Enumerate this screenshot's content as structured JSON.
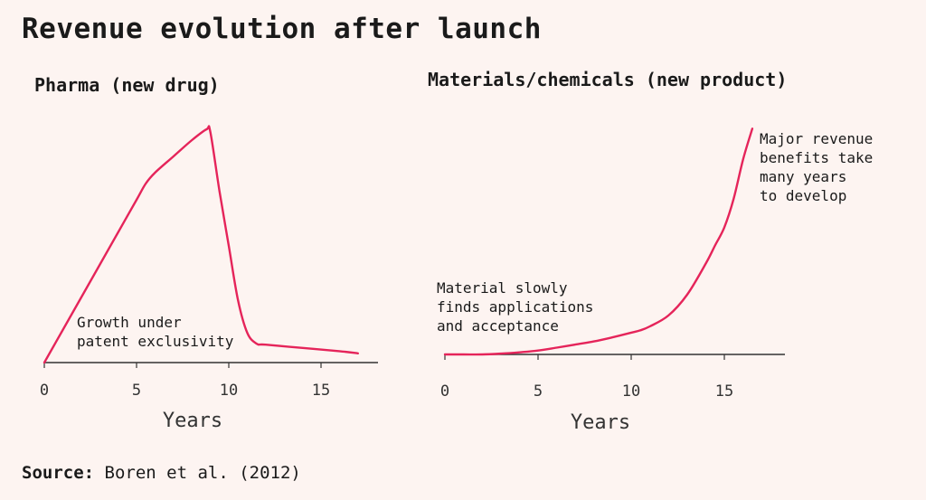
{
  "title": "Revenue evolution after launch",
  "source": {
    "label": "Source:",
    "text": "Boren et al. (2012)"
  },
  "colors": {
    "line": "#e5245a",
    "axis": "#333333",
    "background": "#fdf4f1"
  },
  "chart_data": [
    {
      "type": "line",
      "title": "Pharma (new drug)",
      "xlabel": "Years",
      "ylabel": "",
      "xlim": [
        0,
        18
      ],
      "xticks": [
        0,
        5,
        10,
        15
      ],
      "grid": false,
      "annotation": [
        "Growth under",
        "patent exclusivity"
      ],
      "series": [
        {
          "x": [
            0,
            1,
            2,
            3,
            4,
            5,
            5.5,
            6,
            7,
            8,
            8.8,
            9,
            9.5,
            10,
            10.5,
            11,
            11.5,
            12,
            14,
            16,
            17
          ],
          "y": [
            0,
            12,
            24,
            36,
            48,
            60,
            66,
            70,
            76,
            82,
            86,
            85,
            63,
            43,
            23,
            11,
            7,
            6.6,
            5.4,
            4.2,
            3.4
          ]
        }
      ]
    },
    {
      "type": "line",
      "title": "Materials/chemicals (new product)",
      "xlabel": "Years",
      "ylabel": "",
      "xlim": [
        0,
        18
      ],
      "xticks": [
        0,
        5,
        10,
        15
      ],
      "grid": false,
      "annotations": [
        [
          "Material slowly",
          "finds applications",
          "and acceptance"
        ],
        [
          "Major revenue",
          "benefits take",
          "many years",
          "to develop"
        ]
      ],
      "series": [
        {
          "x": [
            0,
            1,
            2,
            3,
            4,
            5,
            6,
            7,
            8,
            9,
            10,
            10.5,
            11,
            12,
            13,
            14,
            14.5,
            15,
            15.5,
            16,
            16.5
          ],
          "y": [
            0,
            0,
            0,
            0.3,
            0.8,
            1.5,
            2.6,
            3.8,
            5,
            6.6,
            8.4,
            9.3,
            10.8,
            15,
            23,
            35,
            42,
            49,
            60,
            75,
            87
          ]
        }
      ]
    }
  ]
}
